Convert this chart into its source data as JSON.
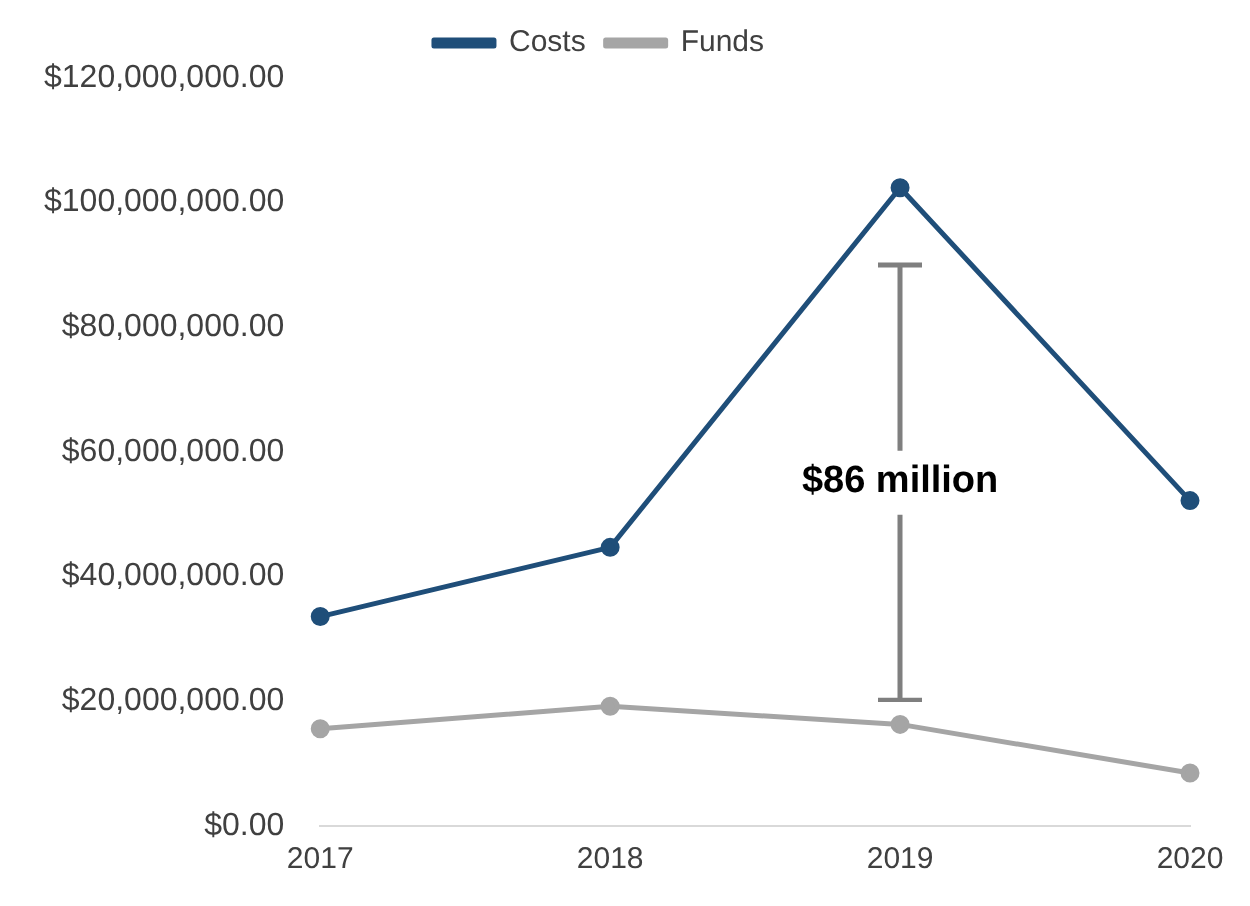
{
  "chart_data": {
    "type": "line",
    "categories": [
      "2017",
      "2018",
      "2019",
      "2020"
    ],
    "series": [
      {
        "name": "Costs",
        "color": "#1f4e79",
        "values": [
          33600000,
          44700000,
          102400000,
          52200000
        ]
      },
      {
        "name": "Funds",
        "color": "#a5a5a5",
        "values": [
          15600000,
          19200000,
          16300000,
          8500000
        ]
      }
    ],
    "ylim": [
      0,
      120000000
    ],
    "yticks": [
      {
        "value": 0,
        "label": "$0.00"
      },
      {
        "value": 20000000,
        "label": "$20,000,000.00"
      },
      {
        "value": 40000000,
        "label": "$40,000,000.00"
      },
      {
        "value": 60000000,
        "label": "$60,000,000.00"
      },
      {
        "value": 80000000,
        "label": "$80,000,000.00"
      },
      {
        "value": 100000000,
        "label": "$100,000,000.00"
      },
      {
        "value": 120000000,
        "label": "$120,000,000.00"
      }
    ],
    "annotations": [
      "$86 million"
    ],
    "marker": "circle",
    "legend": "top",
    "grid": false
  }
}
